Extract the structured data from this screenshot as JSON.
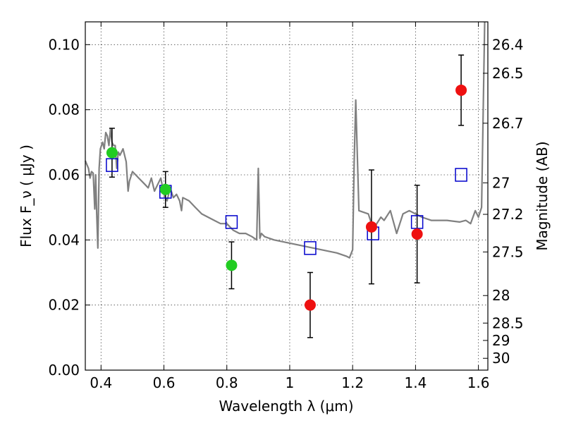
{
  "chart_data": {
    "type": "scatter",
    "xlabel": "Wavelength  λ (μm)",
    "ylabel": "Flux  F_ν  ( μJy )",
    "y2label": "Magnitude (AB)",
    "xlim": [
      0.35,
      1.63
    ],
    "ylim": [
      0.0,
      0.107
    ],
    "grid": true,
    "x_ticks": [
      {
        "value": 0.4,
        "label": "0.4"
      },
      {
        "value": 0.6,
        "label": "0.6"
      },
      {
        "value": 0.8,
        "label": "0.8"
      },
      {
        "value": 1.0,
        "label": "1"
      },
      {
        "value": 1.2,
        "label": "1.2"
      },
      {
        "value": 1.4,
        "label": "1.4"
      },
      {
        "value": 1.6,
        "label": "1.6"
      }
    ],
    "y_ticks": [
      {
        "value": 0.0,
        "label": "0.00"
      },
      {
        "value": 0.02,
        "label": "0.02"
      },
      {
        "value": 0.04,
        "label": "0.04"
      },
      {
        "value": 0.06,
        "label": "0.06"
      },
      {
        "value": 0.08,
        "label": "0.08"
      },
      {
        "value": 0.1,
        "label": "0.10"
      }
    ],
    "y2_ticks": [
      {
        "value": 26.4,
        "label": "26.4"
      },
      {
        "value": 26.5,
        "label": "26.5"
      },
      {
        "value": 26.7,
        "label": "26.7"
      },
      {
        "value": 27.0,
        "label": "27"
      },
      {
        "value": 27.2,
        "label": "27.2"
      },
      {
        "value": 27.5,
        "label": "27.5"
      },
      {
        "value": 28.0,
        "label": "28"
      },
      {
        "value": 28.5,
        "label": "28.5"
      },
      {
        "value": 29.0,
        "label": "29"
      },
      {
        "value": 30.0,
        "label": "30"
      }
    ],
    "colors": {
      "model": "#808080",
      "model_flux": "#0000cc",
      "detection": "#22cc22",
      "other": "#ee1111",
      "errorbar": "#000000"
    },
    "series": [
      {
        "kind": "line",
        "color": "#808080",
        "x": [
          0.35,
          0.36,
          0.365,
          0.37,
          0.375,
          0.38,
          0.383,
          0.386,
          0.39,
          0.394,
          0.398,
          0.405,
          0.41,
          0.415,
          0.42,
          0.425,
          0.43,
          0.435,
          0.44,
          0.445,
          0.45,
          0.455,
          0.46,
          0.47,
          0.48,
          0.486,
          0.49,
          0.5,
          0.51,
          0.52,
          0.53,
          0.54,
          0.55,
          0.56,
          0.57,
          0.58,
          0.59,
          0.6,
          0.61,
          0.62,
          0.63,
          0.64,
          0.65,
          0.656,
          0.66,
          0.68,
          0.7,
          0.72,
          0.74,
          0.76,
          0.78,
          0.8,
          0.82,
          0.84,
          0.86,
          0.88,
          0.895,
          0.9,
          0.905,
          0.91,
          0.92,
          0.95,
          1.0,
          1.05,
          1.1,
          1.15,
          1.18,
          1.19,
          1.2,
          1.205,
          1.21,
          1.22,
          1.25,
          1.26,
          1.27,
          1.29,
          1.3,
          1.32,
          1.34,
          1.36,
          1.38,
          1.4,
          1.42,
          1.45,
          1.5,
          1.54,
          1.56,
          1.575,
          1.59,
          1.6,
          1.61,
          1.62
        ],
        "y": [
          0.0643,
          0.062,
          0.059,
          0.061,
          0.0605,
          0.0495,
          0.06,
          0.0485,
          0.0375,
          0.062,
          0.068,
          0.07,
          0.068,
          0.073,
          0.072,
          0.069,
          0.074,
          0.07,
          0.069,
          0.069,
          0.062,
          0.067,
          0.066,
          0.068,
          0.064,
          0.055,
          0.058,
          0.061,
          0.06,
          0.059,
          0.058,
          0.057,
          0.056,
          0.059,
          0.055,
          0.057,
          0.059,
          0.054,
          0.052,
          0.056,
          0.053,
          0.054,
          0.052,
          0.049,
          0.053,
          0.052,
          0.05,
          0.048,
          0.047,
          0.046,
          0.045,
          0.045,
          0.043,
          0.042,
          0.042,
          0.041,
          0.04,
          0.062,
          0.0405,
          0.042,
          0.041,
          0.04,
          0.039,
          0.038,
          0.037,
          0.036,
          0.035,
          0.0345,
          0.037,
          0.064,
          0.083,
          0.049,
          0.048,
          0.045,
          0.044,
          0.047,
          0.046,
          0.049,
          0.042,
          0.048,
          0.049,
          0.048,
          0.047,
          0.046,
          0.046,
          0.0455,
          0.046,
          0.045,
          0.049,
          0.047,
          0.05,
          0.107
        ]
      },
      {
        "kind": "square",
        "color": "#0000cc",
        "x": [
          0.435,
          0.605,
          0.815,
          1.065,
          1.265,
          1.405,
          1.545
        ],
        "y": [
          0.063,
          0.0548,
          0.0455,
          0.0375,
          0.042,
          0.0455,
          0.06
        ]
      },
      {
        "kind": "circle",
        "color": "#22cc22",
        "x": [
          0.435,
          0.605,
          0.815
        ],
        "y": [
          0.0668,
          0.0555,
          0.0322
        ],
        "err": [
          0.0075,
          0.0055,
          0.0072
        ]
      },
      {
        "kind": "circle",
        "color": "#ee1111",
        "x": [
          1.065,
          1.26,
          1.405,
          1.545
        ],
        "y": [
          0.02,
          0.044,
          0.0418,
          0.086
        ],
        "err": [
          0.01,
          0.0175,
          0.015,
          0.0108
        ]
      }
    ]
  }
}
